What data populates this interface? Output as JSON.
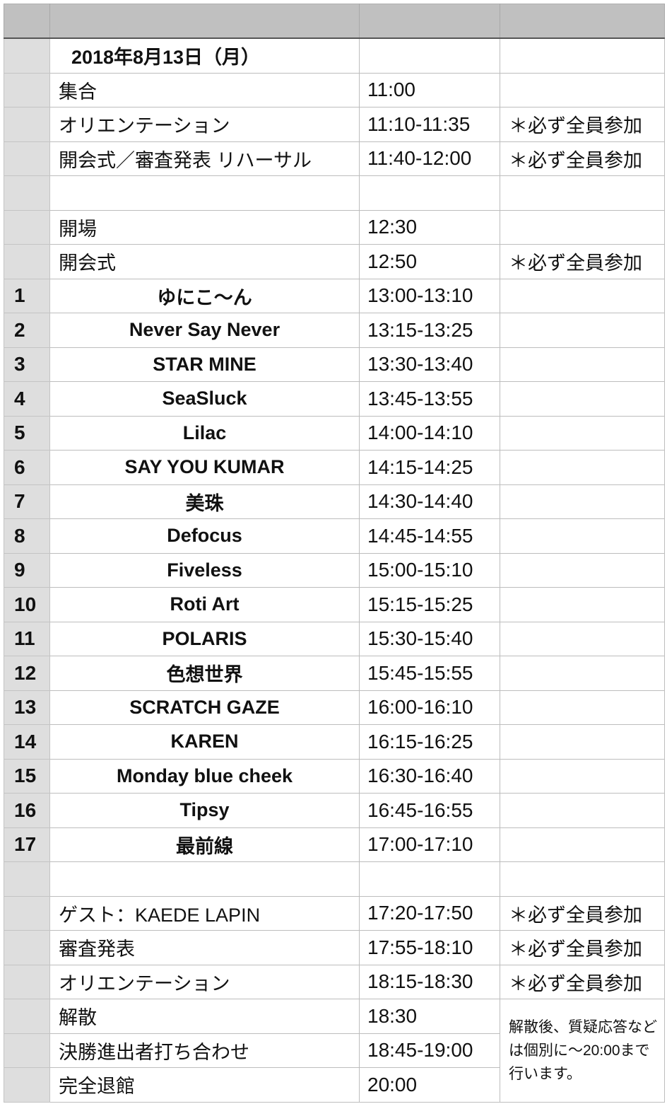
{
  "rows": [
    {
      "num": "",
      "name": "2018年8月13日（月）",
      "time": "",
      "note": "",
      "style": "title"
    },
    {
      "num": "",
      "name": "集合",
      "time": "11:00",
      "note": "",
      "style": "left"
    },
    {
      "num": "",
      "name": "オリエンテーション",
      "time": "11:10-11:35",
      "note": "＊必ず全員参加",
      "style": "left"
    },
    {
      "num": "",
      "name": "開会式／審査発表 リハーサル",
      "time": "11:40-12:00",
      "note": "＊必ず全員参加",
      "style": "left"
    },
    {
      "num": "",
      "name": "",
      "time": "",
      "note": "",
      "style": "left"
    },
    {
      "num": "",
      "name": "開場",
      "time": "12:30",
      "note": "",
      "style": "left"
    },
    {
      "num": "",
      "name": "開会式",
      "time": "12:50",
      "note": "＊必ず全員参加",
      "style": "left"
    },
    {
      "num": "1",
      "name": "ゆにこ〜ん",
      "time": "13:00-13:10",
      "note": "",
      "style": "center"
    },
    {
      "num": "2",
      "name": "Never Say Never",
      "time": "13:15-13:25",
      "note": "",
      "style": "center"
    },
    {
      "num": "3",
      "name": "STAR MINE",
      "time": "13:30-13:40",
      "note": "",
      "style": "center"
    },
    {
      "num": "4",
      "name": "SeaSluck",
      "time": "13:45-13:55",
      "note": "",
      "style": "center"
    },
    {
      "num": "5",
      "name": "Lilac",
      "time": "14:00-14:10",
      "note": "",
      "style": "center"
    },
    {
      "num": "6",
      "name": "SAY YOU KUMAR",
      "time": "14:15-14:25",
      "note": "",
      "style": "center"
    },
    {
      "num": "7",
      "name": "美珠",
      "time": "14:30-14:40",
      "note": "",
      "style": "center"
    },
    {
      "num": "8",
      "name": "Defocus",
      "time": "14:45-14:55",
      "note": "",
      "style": "center"
    },
    {
      "num": "9",
      "name": "Fiveless",
      "time": "15:00-15:10",
      "note": "",
      "style": "center"
    },
    {
      "num": "10",
      "name": "Roti Art",
      "time": "15:15-15:25",
      "note": "",
      "style": "center"
    },
    {
      "num": "11",
      "name": "POLARIS",
      "time": "15:30-15:40",
      "note": "",
      "style": "center"
    },
    {
      "num": "12",
      "name": "色想世界",
      "time": "15:45-15:55",
      "note": "",
      "style": "center"
    },
    {
      "num": "13",
      "name": "SCRATCH GAZE",
      "time": "16:00-16:10",
      "note": "",
      "style": "center"
    },
    {
      "num": "14",
      "name": "KAREN",
      "time": "16:15-16:25",
      "note": "",
      "style": "center"
    },
    {
      "num": "15",
      "name": "Monday blue cheek",
      "time": "16:30-16:40",
      "note": "",
      "style": "center"
    },
    {
      "num": "16",
      "name": "Tipsy",
      "time": "16:45-16:55",
      "note": "",
      "style": "center"
    },
    {
      "num": "17",
      "name": "最前線",
      "time": "17:00-17:10",
      "note": "",
      "style": "center"
    },
    {
      "num": "",
      "name": "",
      "time": "",
      "note": "",
      "style": "left"
    },
    {
      "num": "",
      "name": "ゲスト：KAEDE LAPIN",
      "time": "17:20-17:50",
      "note": "＊必ず全員参加",
      "style": "left"
    },
    {
      "num": "",
      "name": "審査発表",
      "time": "17:55-18:10",
      "note": "＊必ず全員参加",
      "style": "left"
    },
    {
      "num": "",
      "name": "オリエンテーション",
      "time": "18:15-18:30",
      "note": "＊必ず全員参加",
      "style": "left"
    },
    {
      "num": "",
      "name": "解散",
      "time": "18:30",
      "note": "解散後、質疑応答などは個別に〜20:00まで行います。",
      "style": "left",
      "note_rowspan": 3
    },
    {
      "num": "",
      "name": "決勝進出者打ち合わせ",
      "time": "18:45-19:00",
      "style": "left",
      "note_merged": true
    },
    {
      "num": "",
      "name": "完全退館",
      "time": "20:00",
      "style": "left",
      "note_merged": true
    }
  ]
}
